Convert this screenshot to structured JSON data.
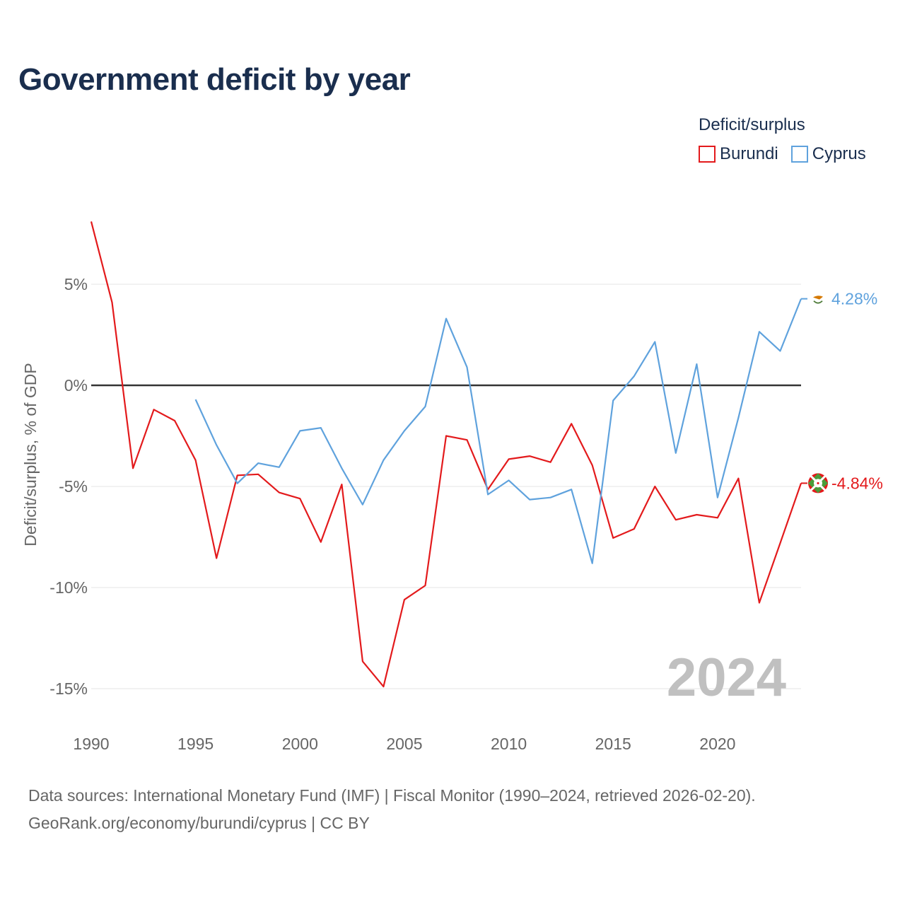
{
  "title": "Government deficit by year",
  "legend": {
    "title": "Deficit/surplus",
    "items": [
      {
        "name": "Burundi",
        "color": "#e31a1c"
      },
      {
        "name": "Cyprus",
        "color": "#5fa2dd"
      }
    ]
  },
  "chart_data": {
    "type": "line",
    "title": "Government deficit by year",
    "xlabel": "",
    "ylabel": "Deficit/surplus, % of GDP",
    "xlim": [
      1990,
      2024
    ],
    "ylim": [
      -16.5,
      10
    ],
    "x_ticks": [
      1990,
      1995,
      2000,
      2005,
      2010,
      2015,
      2020
    ],
    "x_tick_labels": [
      "1990",
      "1995",
      "2000",
      "2005",
      "2010",
      "2015",
      "2020"
    ],
    "y_ticks": [
      5,
      0,
      -5,
      -10,
      -15
    ],
    "y_tick_labels": [
      "5%",
      "0%",
      "-5%",
      "-10%",
      "-15%"
    ],
    "grid": true,
    "watermark_year": "2024",
    "series": [
      {
        "name": "Burundi",
        "color": "#e31a1c",
        "end_label": "-4.84%",
        "x": [
          1990,
          1991,
          1992,
          1993,
          1994,
          1995,
          1996,
          1997,
          1998,
          1999,
          2000,
          2001,
          2002,
          2003,
          2004,
          2005,
          2006,
          2007,
          2008,
          2009,
          2010,
          2011,
          2012,
          2013,
          2014,
          2015,
          2016,
          2017,
          2018,
          2019,
          2020,
          2021,
          2022,
          2023,
          2024
        ],
        "values": [
          8.1,
          4.1,
          -4.1,
          -1.2,
          -1.75,
          -3.7,
          -8.55,
          -4.45,
          -4.4,
          -5.3,
          -5.6,
          -7.75,
          -4.9,
          -13.65,
          -14.9,
          -10.6,
          -9.9,
          -2.5,
          -2.7,
          -5.15,
          -3.65,
          -3.5,
          -3.8,
          -1.9,
          -3.95,
          -7.55,
          -7.1,
          -5.0,
          -6.65,
          -6.4,
          -6.55,
          -4.6,
          -10.75,
          -7.8,
          -4.84
        ]
      },
      {
        "name": "Cyprus",
        "color": "#5fa2dd",
        "end_label": "4.28%",
        "x": [
          1995,
          1996,
          1997,
          1998,
          1999,
          2000,
          2001,
          2002,
          2003,
          2004,
          2005,
          2006,
          2007,
          2008,
          2009,
          2010,
          2011,
          2012,
          2013,
          2014,
          2015,
          2016,
          2017,
          2018,
          2019,
          2020,
          2021,
          2022,
          2023,
          2024
        ],
        "values": [
          -0.7,
          -2.95,
          -4.85,
          -3.85,
          -4.05,
          -2.25,
          -2.1,
          -4.1,
          -5.9,
          -3.7,
          -2.25,
          -1.05,
          3.3,
          0.9,
          -5.4,
          -4.7,
          -5.65,
          -5.55,
          -5.15,
          -8.8,
          -0.75,
          0.45,
          2.15,
          -3.35,
          1.05,
          -5.55,
          -1.6,
          2.65,
          1.7,
          4.28
        ]
      }
    ]
  },
  "source": {
    "line1": "Data sources: International Monetary Fund (IMF) | Fiscal Monitor (1990–2024, retrieved 2026-02-20).",
    "line2": "GeoRank.org/economy/burundi/cyprus | CC BY"
  }
}
